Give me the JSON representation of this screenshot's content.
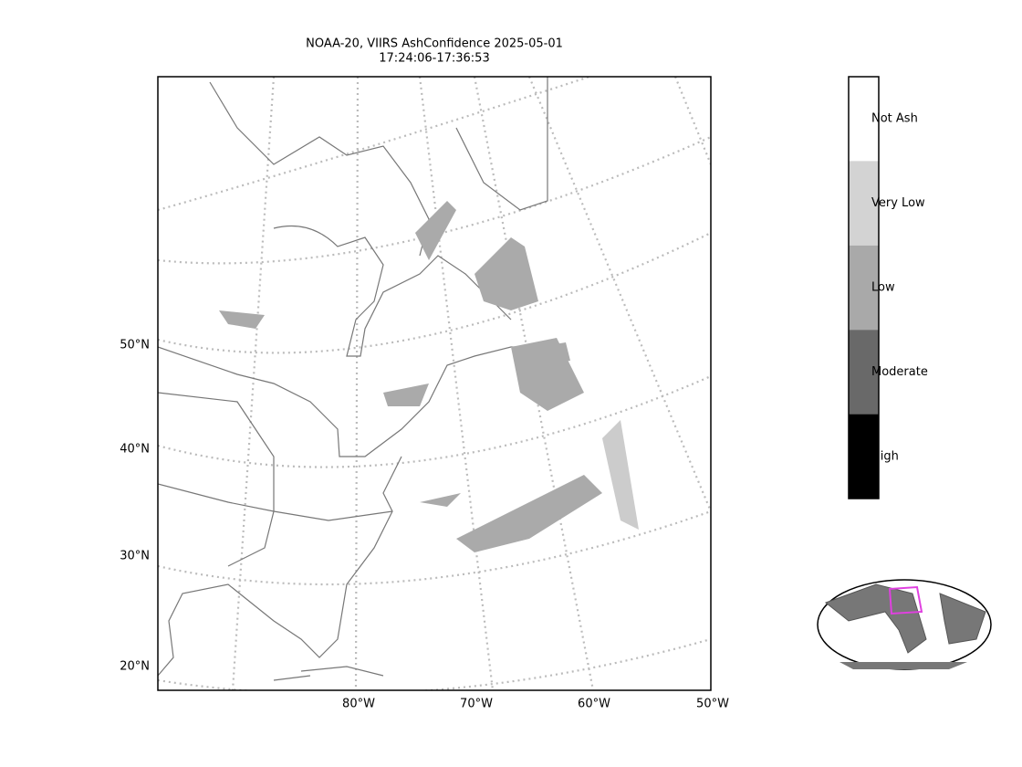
{
  "title": [
    "NOAA-20, VIIRS AshConfidence 2025-05-01",
    "17:24:06-17:36:53"
  ],
  "lat_labels": [
    "50°N",
    "40°N",
    "30°N",
    "20°N"
  ],
  "lon_labels": [
    "80°W",
    "70°W",
    "60°W",
    "50°W"
  ],
  "legend": {
    "categories": [
      "Not Ash",
      "Very Low",
      "Low",
      "Moderate",
      "High"
    ],
    "colors": [
      "#ffffff",
      "#d3d3d3",
      "#a9a9a9",
      "#696969",
      "#000000"
    ]
  }
}
